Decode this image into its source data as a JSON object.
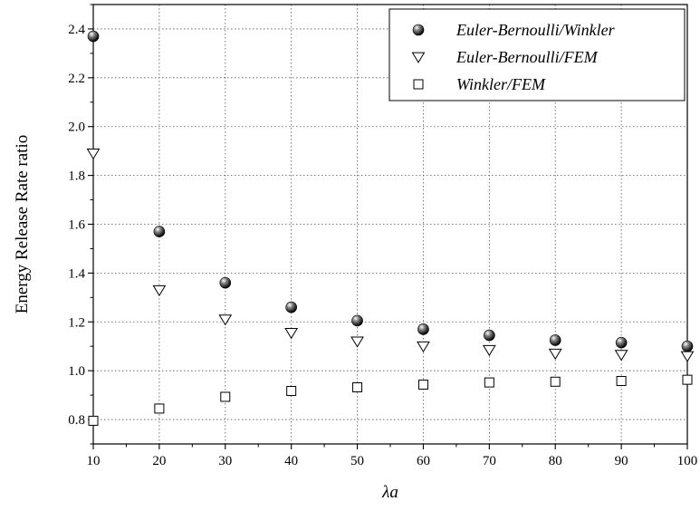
{
  "chart_data": {
    "type": "scatter",
    "title": "",
    "xlabel": "λa",
    "ylabel": "Energy Release Rate ratio",
    "xlim": [
      10,
      100
    ],
    "ylim": [
      0.7,
      2.5
    ],
    "grid": true,
    "legend_position": "top-right",
    "x_ticks": [
      "10",
      "20",
      "30",
      "40",
      "50",
      "60",
      "70",
      "80",
      "90",
      "100"
    ],
    "y_ticks": [
      "0.8",
      "1.0",
      "1.2",
      "1.4",
      "1.6",
      "1.8",
      "2.0",
      "2.2",
      "2.4"
    ],
    "series": [
      {
        "name": "Euler-Bernoulli/Winkler",
        "marker": "filled-sphere",
        "x": [
          10,
          20,
          30,
          40,
          50,
          60,
          70,
          80,
          90,
          100
        ],
        "y": [
          2.37,
          1.57,
          1.36,
          1.26,
          1.205,
          1.17,
          1.145,
          1.125,
          1.115,
          1.1
        ]
      },
      {
        "name": "Euler-Bernoulli/FEM",
        "marker": "open-triangle-down",
        "x": [
          10,
          20,
          30,
          40,
          50,
          60,
          70,
          80,
          90,
          100
        ],
        "y": [
          1.89,
          1.33,
          1.21,
          1.155,
          1.12,
          1.1,
          1.085,
          1.07,
          1.065,
          1.06
        ]
      },
      {
        "name": "Winkler/FEM",
        "marker": "open-square",
        "x": [
          10,
          20,
          30,
          40,
          50,
          60,
          70,
          80,
          90,
          100
        ],
        "y": [
          0.795,
          0.845,
          0.893,
          0.917,
          0.932,
          0.943,
          0.952,
          0.955,
          0.958,
          0.963
        ]
      }
    ]
  }
}
